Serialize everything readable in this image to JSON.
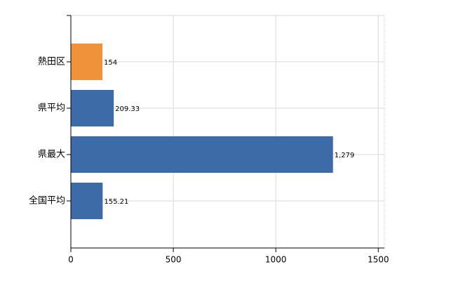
{
  "chart_data": {
    "type": "hbar",
    "categories": [
      "熱田区",
      "県平均",
      "県最大",
      "全国平均"
    ],
    "values": [
      154,
      209.33,
      1279,
      155.21
    ],
    "value_labels": [
      "154",
      "209.33",
      "1,279",
      "155.21"
    ],
    "colors": [
      "#f0923a",
      "#3d6ba8",
      "#3d6ba8",
      "#3d6ba8"
    ],
    "xlim": [
      0,
      1530
    ],
    "xticks": [
      0,
      500,
      1000,
      1500
    ],
    "grid": true
  }
}
